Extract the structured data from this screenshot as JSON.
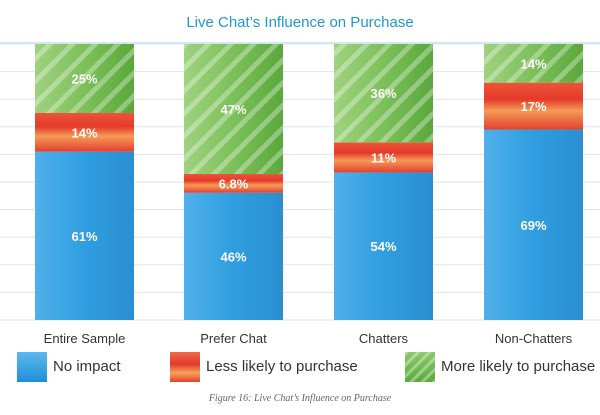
{
  "chart_data": {
    "type": "bar",
    "stacked": true,
    "title": "Live Chat’s Influence on Purchase",
    "categories": [
      "Entire Sample",
      "Prefer Chat",
      "Chatters",
      "Non-Chatters"
    ],
    "series": [
      {
        "name": "No impact",
        "values": [
          61,
          46,
          54,
          69
        ],
        "labels": [
          "61%",
          "46%",
          "54%",
          "69%"
        ],
        "color": "#2f9ee0"
      },
      {
        "name": "Less likely to purchase",
        "values": [
          14,
          6.8,
          11,
          17
        ],
        "labels": [
          "14%",
          "6.8%",
          "11%",
          "17%"
        ],
        "color": "#e8442f"
      },
      {
        "name": "More likely to purchase",
        "values": [
          25,
          47,
          36,
          14
        ],
        "labels": [
          "25%",
          "47%",
          "36%",
          "14%"
        ],
        "color": "#6cb84a"
      }
    ],
    "ylim": [
      0,
      100
    ],
    "grid": true,
    "legend": "bottom"
  },
  "caption": "Figure 16: Live Chat’s Influence on Purchase",
  "colors": {
    "title": "#1a9ad6",
    "grid": "#dde6ee"
  }
}
